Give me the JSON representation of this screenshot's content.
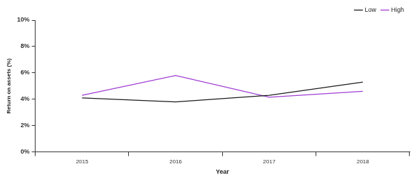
{
  "chart_data": {
    "type": "line",
    "x_label": "Year",
    "y_label": "Return on assets (%)",
    "categories": [
      "2015",
      "2016",
      "2017",
      "2018"
    ],
    "series": [
      {
        "name": "Low",
        "color": "#1a1a1a",
        "values": [
          4.1,
          3.8,
          4.3,
          5.3
        ]
      },
      {
        "name": "High",
        "color": "#a03cd2",
        "values": [
          4.3,
          5.8,
          4.15,
          4.6
        ]
      }
    ],
    "ylim": [
      0,
      10
    ],
    "yticks": [
      {
        "value": 0,
        "label": "0%"
      },
      {
        "value": 2,
        "label": "2%"
      },
      {
        "value": 4,
        "label": "4%"
      },
      {
        "value": 6,
        "label": "6%"
      },
      {
        "value": 8,
        "label": "8%"
      },
      {
        "value": 10,
        "label": "10%"
      }
    ],
    "grid": false,
    "legend": "top-right"
  }
}
